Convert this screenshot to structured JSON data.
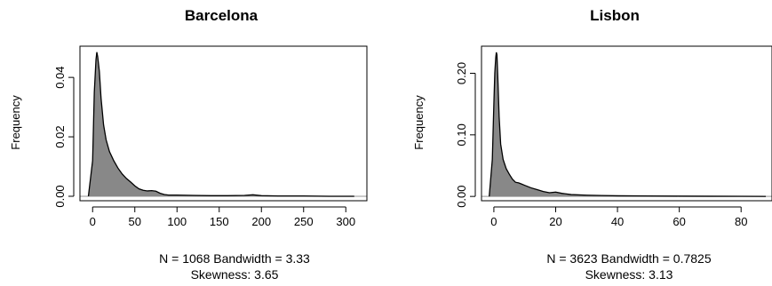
{
  "chart_data": [
    {
      "type": "area",
      "title": "Barcelona",
      "ylabel": "Frequency",
      "xlim": [
        -15,
        325
      ],
      "ylim": [
        -0.0015,
        0.0505
      ],
      "xticks": [
        0,
        50,
        100,
        150,
        200,
        250,
        300
      ],
      "xtick_labels": [
        "0",
        "50",
        "100",
        "150",
        "200",
        "250",
        "300"
      ],
      "yticks": [
        0.0,
        0.02,
        0.04
      ],
      "ytick_labels": [
        "0.00",
        "0.02",
        "0.04"
      ],
      "fill_color": "#888888",
      "baseline_color": "#aaaaaa",
      "x": [
        -5,
        0,
        2,
        4,
        5,
        6,
        8,
        10,
        13,
        16,
        20,
        25,
        30,
        35,
        40,
        45,
        50,
        55,
        60,
        65,
        70,
        75,
        80,
        85,
        90,
        100,
        120,
        140,
        160,
        180,
        190,
        200,
        220,
        250,
        280,
        300,
        310
      ],
      "y": [
        0.0,
        0.012,
        0.035,
        0.046,
        0.0485,
        0.047,
        0.042,
        0.033,
        0.024,
        0.019,
        0.015,
        0.012,
        0.0095,
        0.0075,
        0.006,
        0.0048,
        0.0035,
        0.0025,
        0.002,
        0.0018,
        0.0019,
        0.0017,
        0.001,
        0.0006,
        0.0004,
        0.0004,
        0.0003,
        0.0002,
        0.0002,
        0.0003,
        0.0005,
        0.0002,
        0.0001,
        0.0001,
        0.0,
        0.0,
        0.0
      ],
      "footnote_line1": "N = 1068   Bandwidth = 3.33",
      "footnote_line2": "Skewness: 3.65"
    },
    {
      "type": "area",
      "title": "Lisbon",
      "ylabel": "Frequency",
      "xlim": [
        -4,
        90
      ],
      "ylim": [
        -0.007,
        0.244
      ],
      "xticks": [
        0,
        20,
        40,
        60,
        80
      ],
      "xtick_labels": [
        "0",
        "20",
        "40",
        "60",
        "80"
      ],
      "yticks": [
        0.0,
        0.1,
        0.2
      ],
      "ytick_labels": [
        "0.00",
        "0.10",
        "0.20"
      ],
      "fill_color": "#888888",
      "baseline_color": "#aaaaaa",
      "x": [
        -1.5,
        -0.5,
        0,
        0.3,
        0.6,
        0.8,
        1.0,
        1.3,
        1.7,
        2.2,
        3,
        4,
        5,
        6,
        7,
        8,
        9,
        10,
        12,
        14,
        16,
        18,
        20,
        22,
        25,
        30,
        35,
        40,
        50,
        60,
        70,
        80,
        88
      ],
      "y": [
        0.0,
        0.06,
        0.15,
        0.2,
        0.225,
        0.234,
        0.23,
        0.19,
        0.13,
        0.085,
        0.06,
        0.045,
        0.036,
        0.028,
        0.023,
        0.022,
        0.02,
        0.018,
        0.014,
        0.011,
        0.008,
        0.006,
        0.007,
        0.005,
        0.003,
        0.002,
        0.0015,
        0.001,
        0.0008,
        0.0005,
        0.0003,
        0.0002,
        0.0
      ],
      "footnote_line1": "N = 3623   Bandwidth = 0.7825",
      "footnote_line2": "Skewness: 3.13"
    }
  ]
}
